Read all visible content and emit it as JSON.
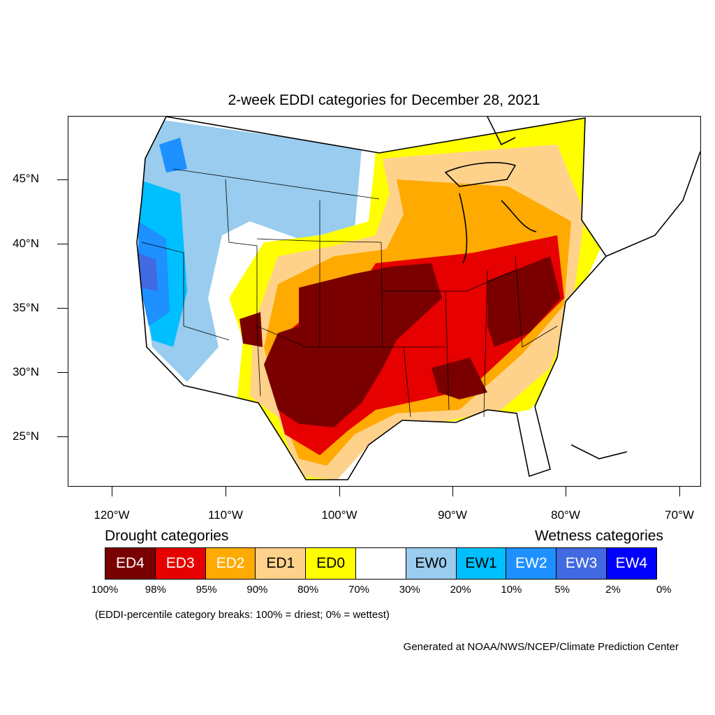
{
  "title": "2-week EDDI categories for December 28, 2021",
  "axes": {
    "lat_labels": [
      "45°N",
      "40°N",
      "35°N",
      "30°N",
      "25°N"
    ],
    "lon_labels": [
      "120°W",
      "110°W",
      "100°W",
      "90°W",
      "80°W",
      "70°W"
    ]
  },
  "legend": {
    "drought_heading": "Drought categories",
    "wetness_heading": "Wetness categories",
    "categories": [
      {
        "label": "ED4",
        "color": "#7a0000",
        "text_color": "#ffffff"
      },
      {
        "label": "ED3",
        "color": "#e60000",
        "text_color": "#ffffff"
      },
      {
        "label": "ED2",
        "color": "#ffaa00",
        "text_color": "#ffffff"
      },
      {
        "label": "ED1",
        "color": "#ffd28c",
        "text_color": "#000000"
      },
      {
        "label": "ED0",
        "color": "#ffff00",
        "text_color": "#000000"
      },
      {
        "label": "",
        "color": "#ffffff",
        "text_color": "#000000"
      },
      {
        "label": "EW0",
        "color": "#99ccee",
        "text_color": "#000000"
      },
      {
        "label": "EW1",
        "color": "#00bfff",
        "text_color": "#000000"
      },
      {
        "label": "EW2",
        "color": "#1e90ff",
        "text_color": "#ffffff"
      },
      {
        "label": "EW3",
        "color": "#4169e1",
        "text_color": "#ffffff"
      },
      {
        "label": "EW4",
        "color": "#0000ff",
        "text_color": "#ffffff"
      }
    ],
    "breaks": [
      "100%",
      "98%",
      "95%",
      "90%",
      "80%",
      "70%",
      "30%",
      "20%",
      "10%",
      "5%",
      "2%",
      "0%"
    ]
  },
  "note": "(EDDI-percentile category breaks: 100% = driest; 0% = wettest)",
  "credit": "Generated at NOAA/NWS/NCEP/Climate Prediction Center"
}
